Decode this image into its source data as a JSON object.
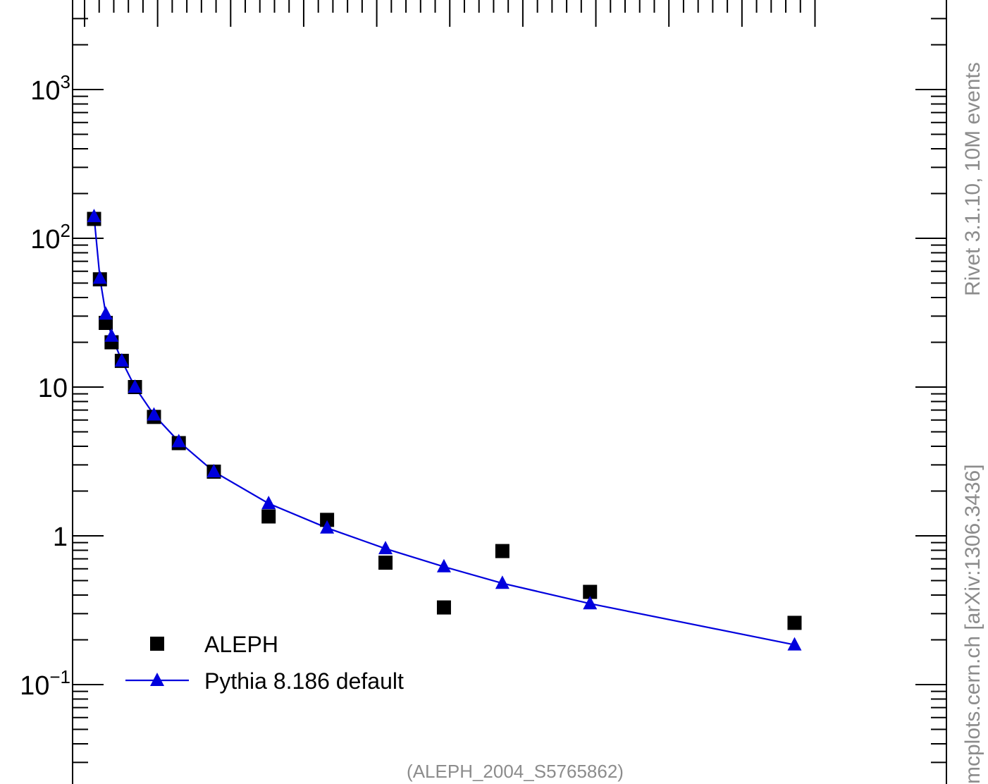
{
  "chart_data": {
    "type": "scatter",
    "title": "",
    "xlabel": "",
    "ylabel": "",
    "yscale": "log",
    "ylim": [
      0.03,
      3000
    ],
    "xlim": [
      0,
      0.5
    ],
    "grid": false,
    "legend_position": "bottom-left",
    "y_tick_labels": [
      {
        "value": 1000,
        "base": "10",
        "exp": "3"
      },
      {
        "value": 100,
        "base": "10",
        "exp": "2"
      },
      {
        "value": 10,
        "base": "10",
        "exp": ""
      },
      {
        "value": 1,
        "base": "1",
        "exp": ""
      },
      {
        "value": 0.1,
        "base": "10",
        "exp": "−1"
      }
    ],
    "series": [
      {
        "name": "ALEPH",
        "marker": "square",
        "color": "#000000",
        "x": [
          0.0065,
          0.0105,
          0.0145,
          0.0185,
          0.0255,
          0.0345,
          0.0475,
          0.0645,
          0.0885,
          0.126,
          0.166,
          0.206,
          0.246,
          0.286,
          0.346,
          0.486
        ],
        "y": [
          135,
          53,
          27,
          20,
          15,
          10,
          6.3,
          4.2,
          2.7,
          1.35,
          1.28,
          0.66,
          0.33,
          0.79,
          0.42,
          0.26
        ]
      },
      {
        "name": "Pythia 8.186 default",
        "marker": "triangle",
        "line": true,
        "color": "#0000dd",
        "x": [
          0.0065,
          0.0105,
          0.0145,
          0.0185,
          0.0255,
          0.0345,
          0.0475,
          0.0645,
          0.0885,
          0.126,
          0.166,
          0.206,
          0.246,
          0.286,
          0.346,
          0.486
        ],
        "y": [
          140,
          54,
          31,
          22,
          15,
          10,
          6.5,
          4.3,
          2.7,
          1.65,
          1.13,
          0.82,
          0.62,
          0.48,
          0.35,
          0.185
        ]
      }
    ]
  },
  "annotations": {
    "analysis_id": "(ALEPH_2004_S5765862)",
    "side_text_1": "Rivet 3.1.10,  10M events",
    "side_text_2": "mcplots.cern.ch [arXiv:1306.3436]"
  }
}
